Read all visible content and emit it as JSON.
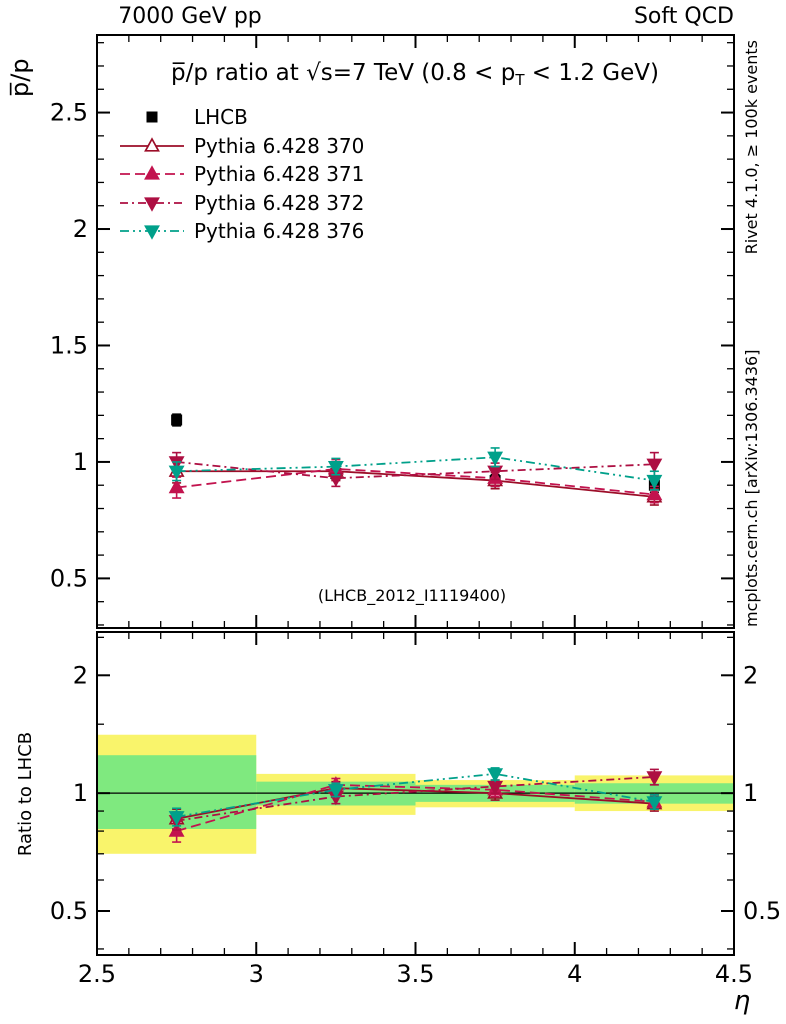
{
  "header": {
    "left": "7000 GeV pp",
    "right": "Soft QCD"
  },
  "credits": {
    "rivet": "Rivet 4.1.0, ≥ 100k events",
    "mcplots": "mcplots.cern.ch [arXiv:1306.3436]"
  },
  "watermark": "(LHCB_2012_I1119400)",
  "chart_data": [
    {
      "type": "line",
      "panel": "main",
      "title": "p̅/p ratio at √s=7 TeV (0.8 < pT < 1.2 GeV)",
      "title_parts": {
        "pre": "p̅/p ratio at √s=7 TeV (0.8 < p",
        "sub": "T",
        "post": " < 1.2 GeV)"
      },
      "ylabel": "p̅/p",
      "xlim": [
        2.5,
        4.5
      ],
      "ylim": [
        0.287,
        2.833
      ],
      "yscale": "linear",
      "xticks": [
        2.5,
        3,
        3.5,
        4,
        4.5
      ],
      "yticks": [
        0.5,
        1,
        1.5,
        2,
        2.5
      ],
      "legend_position": "top-left",
      "x": [
        2.75,
        3.25,
        3.75,
        4.25
      ],
      "series": [
        {
          "name": "LHCB",
          "color": "#000000",
          "marker": "square-filled",
          "line": "none",
          "values": [
            1.18,
            0.95,
            0.92,
            0.9
          ],
          "errors": [
            0.025,
            0.025,
            0.025,
            0.03
          ]
        },
        {
          "name": "Pythia 6.428 370",
          "color": "#9c0d28",
          "marker": "triangle-up-open",
          "line": "solid",
          "values": [
            0.96,
            0.96,
            0.92,
            0.85
          ],
          "errors": [
            0.05,
            0.04,
            0.035,
            0.035
          ]
        },
        {
          "name": "Pythia 6.428 371",
          "color": "#c2134e",
          "marker": "triangle-up-filled",
          "line": "dashed",
          "values": [
            0.89,
            0.97,
            0.93,
            0.86
          ],
          "errors": [
            0.045,
            0.04,
            0.035,
            0.035
          ]
        },
        {
          "name": "Pythia 6.428 372",
          "color": "#ad0f42",
          "marker": "triangle-down-filled",
          "line": "dashdot",
          "values": [
            1.0,
            0.93,
            0.96,
            0.99
          ],
          "errors": [
            0.04,
            0.035,
            0.035,
            0.05
          ]
        },
        {
          "name": "Pythia 6.428 376",
          "color": "#00a08a",
          "marker": "triangle-down-filled",
          "line": "dashdotdot",
          "values": [
            0.96,
            0.98,
            1.02,
            0.92
          ],
          "errors": [
            0.04,
            0.035,
            0.04,
            0.04
          ]
        }
      ]
    },
    {
      "type": "line",
      "panel": "ratio",
      "ylabel": "Ratio to LHCB",
      "xlabel": "η",
      "xlim": [
        2.5,
        4.5
      ],
      "ylim": [
        0.386,
        2.58
      ],
      "yscale": "log",
      "xticks": [
        2.5,
        3,
        3.5,
        4,
        4.5
      ],
      "yticks": [
        0.5,
        1,
        2
      ],
      "yticks_minor": [
        0.4,
        0.6,
        0.7,
        0.8,
        0.9,
        1.5,
        2.5
      ],
      "reference_line": 1,
      "x": [
        2.75,
        3.25,
        3.75,
        4.25
      ],
      "bands": {
        "bin_edges": [
          2.5,
          3,
          3.5,
          4,
          4.5
        ],
        "yellow_color": "#f9f46b",
        "green_color": "#7fe97f",
        "yellow": [
          [
            0.7,
            1.41
          ],
          [
            0.88,
            1.12
          ],
          [
            0.92,
            1.08
          ],
          [
            0.9,
            1.11
          ]
        ],
        "green": [
          [
            0.81,
            1.25
          ],
          [
            0.93,
            1.07
          ],
          [
            0.95,
            1.05
          ],
          [
            0.94,
            1.06
          ]
        ]
      },
      "series": [
        {
          "name": "Pythia 6.428 370",
          "color": "#9c0d28",
          "marker": "triangle-up-open",
          "line": "solid",
          "values": [
            0.86,
            1.03,
            1.0,
            0.94
          ],
          "errors": [
            0.05,
            0.04,
            0.04,
            0.04
          ]
        },
        {
          "name": "Pythia 6.428 371",
          "color": "#c2134e",
          "marker": "triangle-up-filled",
          "line": "dashed",
          "values": [
            0.8,
            1.05,
            1.02,
            0.95
          ],
          "errors": [
            0.05,
            0.04,
            0.04,
            0.04
          ]
        },
        {
          "name": "Pythia 6.428 372",
          "color": "#ad0f42",
          "marker": "triangle-down-filled",
          "line": "dashdot",
          "values": [
            0.85,
            0.98,
            1.04,
            1.1
          ],
          "errors": [
            0.045,
            0.04,
            0.04,
            0.05
          ]
        },
        {
          "name": "Pythia 6.428 376",
          "color": "#00a08a",
          "marker": "triangle-down-filled",
          "line": "dashdotdot",
          "values": [
            0.87,
            1.02,
            1.12,
            0.95
          ],
          "errors": [
            0.045,
            0.04,
            0.04,
            0.04
          ]
        }
      ]
    }
  ]
}
